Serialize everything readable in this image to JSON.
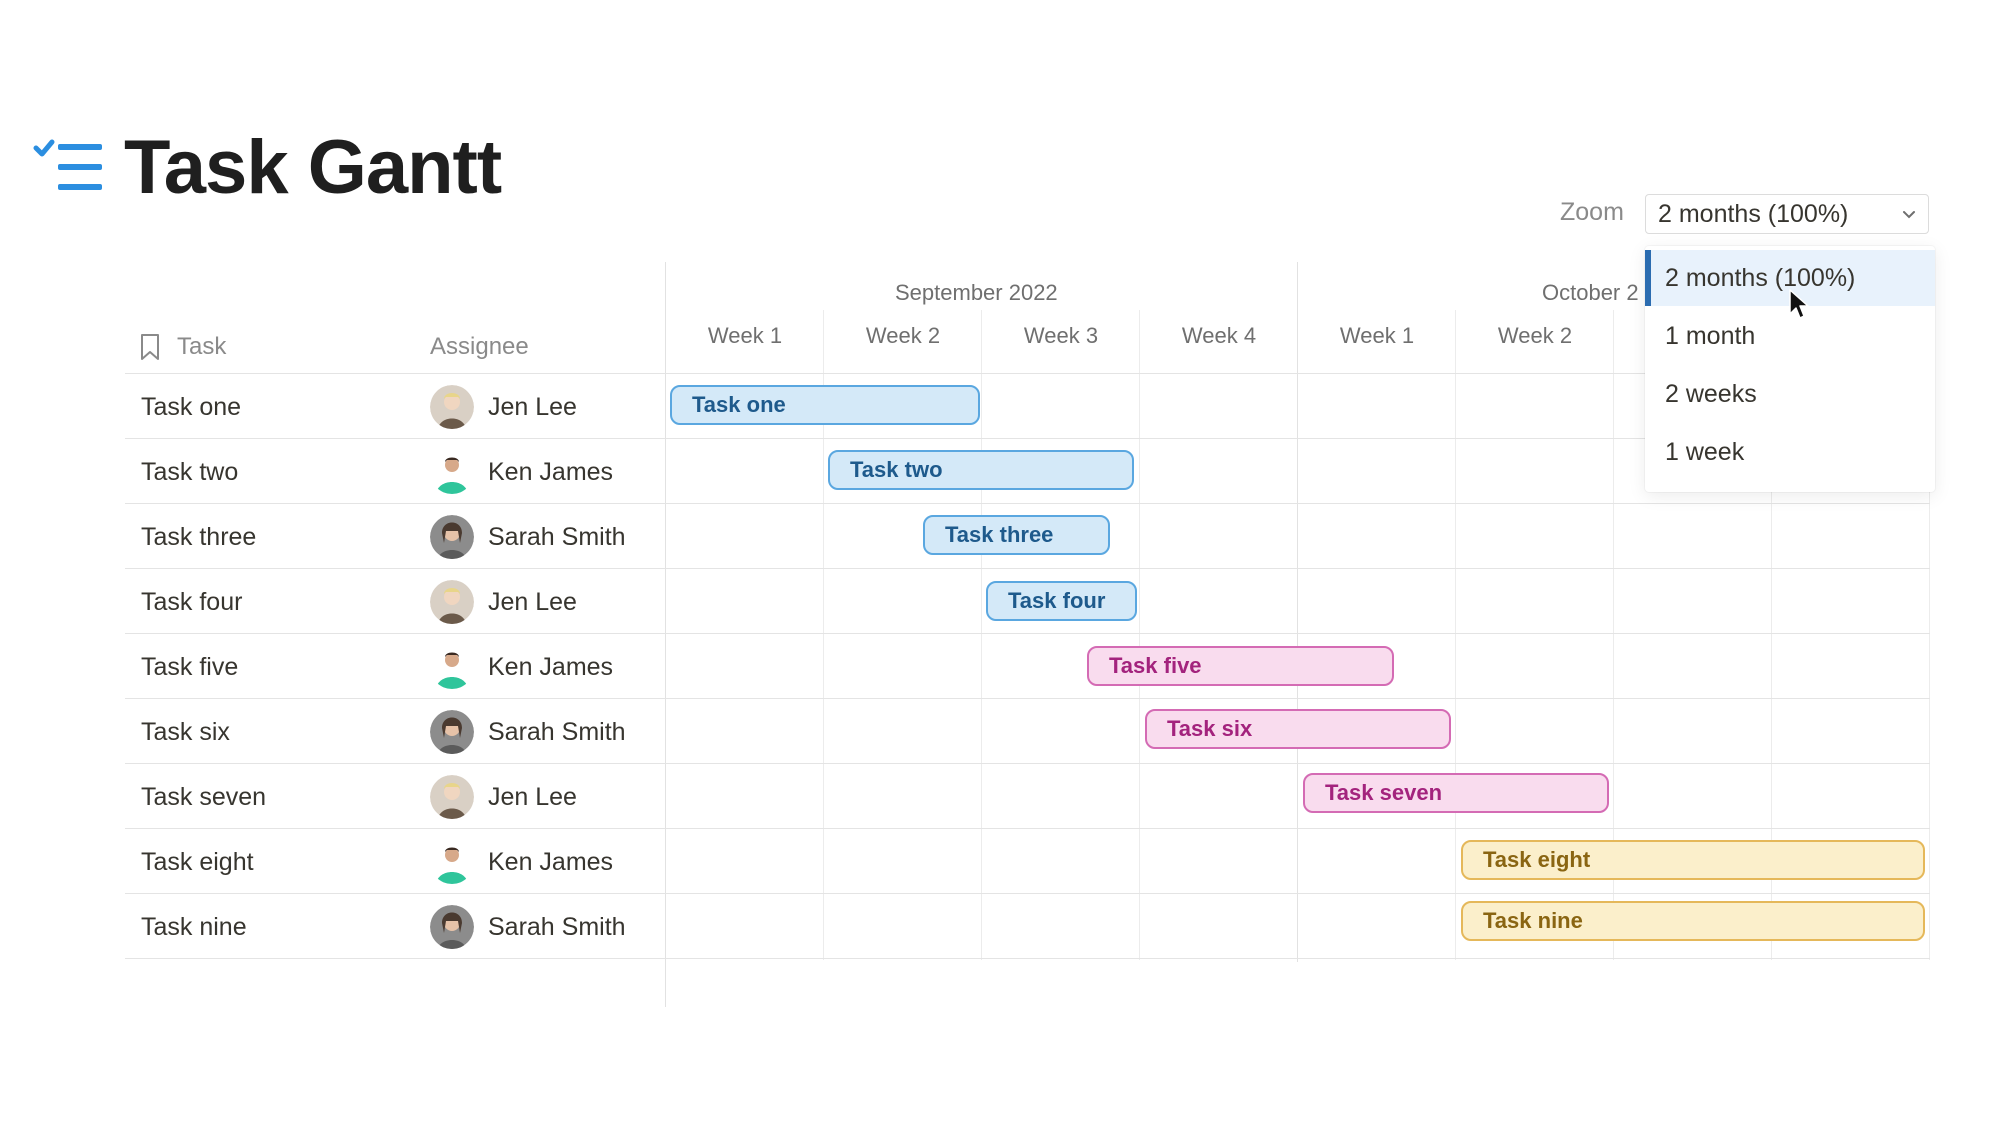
{
  "page": {
    "title": "Task Gantt",
    "icon": "checklist-icon"
  },
  "zoom": {
    "label": "Zoom",
    "selected": "2 months (100%)",
    "options": [
      "2 months (100%)",
      "1 month",
      "2 weeks",
      "1 week"
    ]
  },
  "columns": {
    "task": "Task",
    "assignee": "Assignee"
  },
  "timeline": {
    "months": [
      "September 2022",
      "October 2"
    ],
    "weeks": [
      "Week 1",
      "Week 2",
      "Week 3",
      "Week 4",
      "Week 1",
      "Week 2"
    ]
  },
  "tasks": [
    {
      "name": "Task one",
      "assignee": "Jen Lee",
      "bar_label": "Task one"
    },
    {
      "name": "Task two",
      "assignee": "Ken James",
      "bar_label": "Task two"
    },
    {
      "name": "Task three",
      "assignee": "Sarah Smith",
      "bar_label": "Task three"
    },
    {
      "name": "Task four",
      "assignee": "Jen Lee",
      "bar_label": "Task four"
    },
    {
      "name": "Task five",
      "assignee": "Ken James",
      "bar_label": "Task five"
    },
    {
      "name": "Task six",
      "assignee": "Sarah Smith",
      "bar_label": "Task six"
    },
    {
      "name": "Task seven",
      "assignee": "Jen Lee",
      "bar_label": "Task seven"
    },
    {
      "name": "Task eight",
      "assignee": "Ken James",
      "bar_label": "Task eight"
    },
    {
      "name": "Task nine",
      "assignee": "Sarah Smith",
      "bar_label": "Task nine"
    }
  ],
  "colors": {
    "blue": "#5aa7e0",
    "pink": "#d46bb4",
    "yellow": "#e5b85a",
    "accent": "#2b6cb0"
  }
}
